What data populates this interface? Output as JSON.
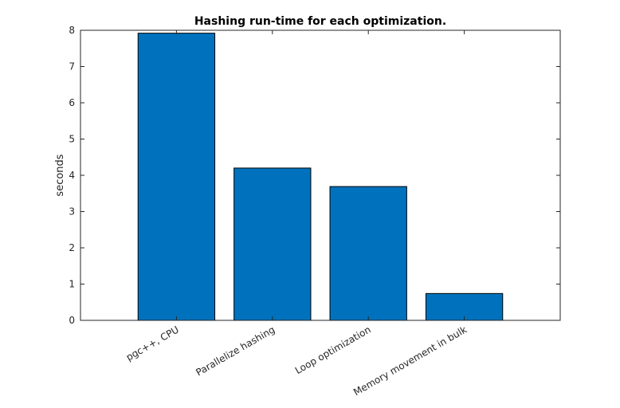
{
  "chart_data": {
    "type": "bar",
    "title": "Hashing run-time for each optimization.",
    "xlabel": "",
    "ylabel": "seconds",
    "categories": [
      "pgc++, CPU",
      "Parallelize hashing",
      "Loop optimization",
      "Memory movement in bulk"
    ],
    "values": [
      7.92,
      4.2,
      3.69,
      0.74
    ],
    "ylim": [
      0,
      8
    ],
    "yticks": [
      "0",
      "1",
      "2",
      "3",
      "4",
      "5",
      "6",
      "7",
      "8"
    ],
    "grid": false,
    "bar_color": "#0072bd",
    "bar_edge_color": "#000000"
  }
}
